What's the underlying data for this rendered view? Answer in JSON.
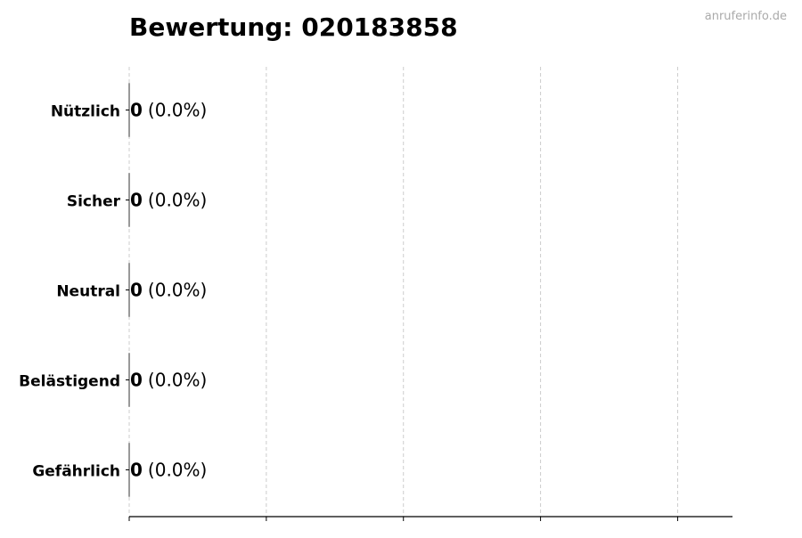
{
  "watermark": "anruferinfo.de",
  "chart_data": {
    "type": "bar",
    "orientation": "horizontal",
    "title": "Bewertung: 020183858",
    "categories": [
      "Nützlich",
      "Sicher",
      "Neutral",
      "Belästigend",
      "Gefährlich"
    ],
    "values": [
      0,
      0,
      0,
      0,
      0
    ],
    "data_labels": [
      {
        "count": "0",
        "percent": "(0.0%)"
      },
      {
        "count": "0",
        "percent": "(0.0%)"
      },
      {
        "count": "0",
        "percent": "(0.0%)"
      },
      {
        "count": "0",
        "percent": "(0.0%)"
      },
      {
        "count": "0",
        "percent": "(0.0%)"
      }
    ],
    "xlabel": "",
    "ylabel": "",
    "xlim": [
      0,
      0.044
    ],
    "xticks": [
      0,
      0.01,
      0.02,
      0.03,
      0.04
    ],
    "xtick_labels_shown": false,
    "grid": "x dashed",
    "colors": {
      "bar_edge": "#333333",
      "grid": "#cccccc",
      "axis": "#000000",
      "watermark": "#aaaaaa"
    }
  }
}
